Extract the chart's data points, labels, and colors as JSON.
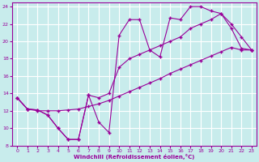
{
  "xlabel": "Windchill (Refroidissement éolien,°C)",
  "bg_color": "#c8ecec",
  "line_color": "#990099",
  "grid_color": "#ffffff",
  "xlim": [
    -0.5,
    23.5
  ],
  "ylim": [
    8,
    24.5
  ],
  "xticks": [
    0,
    1,
    2,
    3,
    4,
    5,
    6,
    7,
    8,
    9,
    10,
    11,
    12,
    13,
    14,
    15,
    16,
    17,
    18,
    19,
    20,
    21,
    22,
    23
  ],
  "yticks": [
    8,
    10,
    12,
    14,
    16,
    18,
    20,
    22,
    24
  ],
  "line1_x": [
    0,
    1,
    2,
    3,
    4,
    5,
    6,
    7,
    8,
    9,
    10,
    11,
    12,
    13,
    14,
    15,
    16,
    17,
    18,
    19,
    20,
    21,
    22,
    23
  ],
  "line1_y": [
    13.5,
    12.2,
    12.1,
    11.5,
    10.0,
    8.7,
    8.7,
    13.8,
    10.7,
    9.5,
    20.7,
    22.5,
    22.5,
    19.0,
    18.2,
    22.7,
    22.5,
    24.0,
    24.0,
    23.5,
    23.2,
    22.0,
    20.5,
    19.0
  ],
  "line2_x": [
    0,
    1,
    2,
    3,
    4,
    5,
    6,
    7,
    8,
    9,
    10,
    11,
    12,
    13,
    14,
    15,
    16,
    17,
    18,
    19,
    20,
    21,
    22,
    23
  ],
  "line2_y": [
    13.5,
    12.2,
    12.1,
    11.5,
    10.0,
    8.7,
    8.7,
    13.8,
    13.5,
    14.0,
    17.0,
    18.0,
    18.5,
    19.0,
    19.5,
    20.0,
    20.5,
    21.5,
    22.0,
    22.5,
    23.2,
    21.5,
    19.2,
    19.0
  ],
  "line3_x": [
    0,
    1,
    2,
    3,
    4,
    5,
    6,
    7,
    8,
    9,
    10,
    11,
    12,
    13,
    14,
    15,
    16,
    17,
    18,
    19,
    20,
    21,
    22,
    23
  ],
  "line3_y": [
    13.5,
    12.2,
    12.0,
    12.0,
    12.0,
    12.1,
    12.2,
    12.5,
    12.8,
    13.2,
    13.7,
    14.2,
    14.7,
    15.2,
    15.7,
    16.3,
    16.8,
    17.3,
    17.8,
    18.3,
    18.8,
    19.3,
    19.0,
    19.0
  ]
}
